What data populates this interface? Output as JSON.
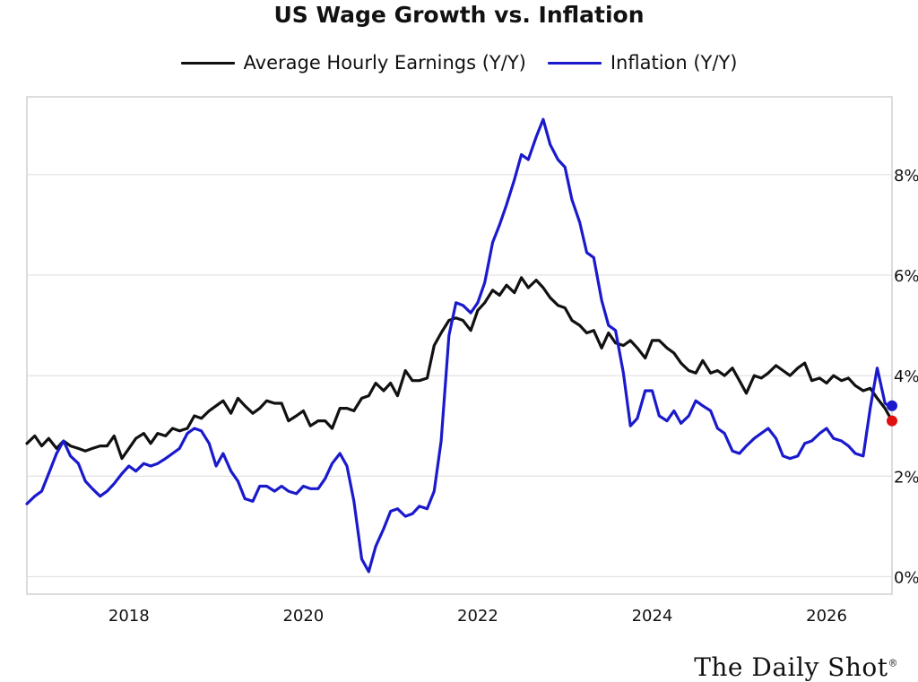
{
  "colors": {
    "earnings": "#111111",
    "inflation": "#1a1acc",
    "latest_earnings": "#e01010",
    "latest_inflation": "#1a1acc",
    "grid": "#dcdcdc"
  },
  "chart_data": {
    "type": "line",
    "title": "US Wage Growth vs. Inflation",
    "xlabel": "",
    "ylabel": "",
    "y_axis_side": "right",
    "x_ticks": [
      2018,
      2020,
      2022,
      2024,
      2026
    ],
    "x_tick_labels": [
      "2018",
      "2020",
      "2022",
      "2024",
      "2026"
    ],
    "y_ticks": [
      0,
      2,
      4,
      6,
      8
    ],
    "y_tick_labels": [
      "0%",
      "2%",
      "4%",
      "6%",
      "8%"
    ],
    "xlim": [
      2016.83,
      2026.75
    ],
    "ylim": [
      -0.35,
      9.55
    ],
    "grid": "horizontal",
    "legend_position": "top",
    "series": [
      {
        "name": "Average Hourly Earnings (Y/Y)",
        "key": "earnings",
        "points": [
          [
            2016.83,
            2.65
          ],
          [
            2016.92,
            2.8
          ],
          [
            2017.0,
            2.6
          ],
          [
            2017.08,
            2.75
          ],
          [
            2017.17,
            2.55
          ],
          [
            2017.25,
            2.7
          ],
          [
            2017.33,
            2.6
          ],
          [
            2017.42,
            2.55
          ],
          [
            2017.5,
            2.5
          ],
          [
            2017.58,
            2.55
          ],
          [
            2017.67,
            2.6
          ],
          [
            2017.75,
            2.6
          ],
          [
            2017.83,
            2.8
          ],
          [
            2017.92,
            2.35
          ],
          [
            2018.0,
            2.55
          ],
          [
            2018.08,
            2.75
          ],
          [
            2018.17,
            2.85
          ],
          [
            2018.25,
            2.65
          ],
          [
            2018.33,
            2.85
          ],
          [
            2018.42,
            2.8
          ],
          [
            2018.5,
            2.95
          ],
          [
            2018.58,
            2.9
          ],
          [
            2018.67,
            2.95
          ],
          [
            2018.75,
            3.2
          ],
          [
            2018.83,
            3.15
          ],
          [
            2018.92,
            3.3
          ],
          [
            2019.0,
            3.4
          ],
          [
            2019.08,
            3.5
          ],
          [
            2019.17,
            3.25
          ],
          [
            2019.25,
            3.55
          ],
          [
            2019.33,
            3.4
          ],
          [
            2019.42,
            3.25
          ],
          [
            2019.5,
            3.35
          ],
          [
            2019.58,
            3.5
          ],
          [
            2019.67,
            3.45
          ],
          [
            2019.75,
            3.45
          ],
          [
            2019.83,
            3.1
          ],
          [
            2019.92,
            3.2
          ],
          [
            2020.0,
            3.3
          ],
          [
            2020.08,
            3.0
          ],
          [
            2020.17,
            3.1
          ],
          [
            2020.25,
            3.1
          ],
          [
            2020.33,
            2.95
          ],
          [
            2020.42,
            3.35
          ],
          [
            2020.5,
            3.35
          ],
          [
            2020.58,
            3.3
          ],
          [
            2020.67,
            3.55
          ],
          [
            2020.75,
            3.6
          ],
          [
            2020.83,
            3.85
          ],
          [
            2020.92,
            3.7
          ],
          [
            2021.0,
            3.85
          ],
          [
            2021.08,
            3.6
          ],
          [
            2021.17,
            4.1
          ],
          [
            2021.25,
            3.9
          ],
          [
            2021.33,
            3.9
          ],
          [
            2021.42,
            3.95
          ],
          [
            2021.5,
            4.6
          ],
          [
            2021.58,
            4.85
          ],
          [
            2021.67,
            5.1
          ],
          [
            2021.75,
            5.15
          ],
          [
            2021.83,
            5.1
          ],
          [
            2021.92,
            4.9
          ],
          [
            2022.0,
            5.3
          ],
          [
            2022.08,
            5.45
          ],
          [
            2022.17,
            5.7
          ],
          [
            2022.25,
            5.6
          ],
          [
            2022.33,
            5.8
          ],
          [
            2022.42,
            5.65
          ],
          [
            2022.5,
            5.95
          ],
          [
            2022.58,
            5.75
          ],
          [
            2022.67,
            5.9
          ],
          [
            2022.75,
            5.75
          ],
          [
            2022.83,
            5.55
          ],
          [
            2022.92,
            5.4
          ],
          [
            2023.0,
            5.35
          ],
          [
            2023.08,
            5.1
          ],
          [
            2023.17,
            5.0
          ],
          [
            2023.25,
            4.85
          ],
          [
            2023.33,
            4.9
          ],
          [
            2023.42,
            4.55
          ],
          [
            2023.5,
            4.85
          ],
          [
            2023.58,
            4.65
          ],
          [
            2023.67,
            4.6
          ],
          [
            2023.75,
            4.7
          ],
          [
            2023.83,
            4.55
          ],
          [
            2023.92,
            4.35
          ],
          [
            2024.0,
            4.7
          ],
          [
            2024.08,
            4.7
          ],
          [
            2024.17,
            4.55
          ],
          [
            2024.25,
            4.45
          ],
          [
            2024.33,
            4.25
          ],
          [
            2024.42,
            4.1
          ],
          [
            2024.5,
            4.05
          ],
          [
            2024.58,
            4.3
          ],
          [
            2024.67,
            4.05
          ],
          [
            2024.75,
            4.1
          ],
          [
            2024.83,
            4.0
          ],
          [
            2024.92,
            4.15
          ],
          [
            2025.0,
            3.9
          ],
          [
            2025.08,
            3.65
          ],
          [
            2025.17,
            4.0
          ],
          [
            2025.25,
            3.95
          ],
          [
            2025.33,
            4.05
          ],
          [
            2025.42,
            4.2
          ],
          [
            2025.5,
            4.1
          ],
          [
            2025.58,
            4.0
          ],
          [
            2025.67,
            4.15
          ],
          [
            2025.75,
            4.25
          ],
          [
            2025.83,
            3.9
          ],
          [
            2025.92,
            3.95
          ],
          [
            2026.0,
            3.85
          ],
          [
            2026.08,
            4.0
          ],
          [
            2026.17,
            3.9
          ],
          [
            2026.25,
            3.95
          ],
          [
            2026.33,
            3.8
          ],
          [
            2026.42,
            3.7
          ],
          [
            2026.5,
            3.75
          ],
          [
            2026.58,
            3.55
          ],
          [
            2026.67,
            3.35
          ],
          [
            2026.75,
            3.1
          ]
        ]
      },
      {
        "name": "Inflation (Y/Y)",
        "key": "inflation",
        "points": [
          [
            2016.83,
            1.45
          ],
          [
            2016.92,
            1.6
          ],
          [
            2017.0,
            1.7
          ],
          [
            2017.08,
            2.05
          ],
          [
            2017.17,
            2.45
          ],
          [
            2017.25,
            2.7
          ],
          [
            2017.33,
            2.4
          ],
          [
            2017.42,
            2.25
          ],
          [
            2017.5,
            1.9
          ],
          [
            2017.58,
            1.75
          ],
          [
            2017.67,
            1.6
          ],
          [
            2017.75,
            1.7
          ],
          [
            2017.83,
            1.85
          ],
          [
            2017.92,
            2.05
          ],
          [
            2018.0,
            2.2
          ],
          [
            2018.08,
            2.1
          ],
          [
            2018.17,
            2.25
          ],
          [
            2018.25,
            2.2
          ],
          [
            2018.33,
            2.25
          ],
          [
            2018.42,
            2.35
          ],
          [
            2018.5,
            2.45
          ],
          [
            2018.58,
            2.55
          ],
          [
            2018.67,
            2.85
          ],
          [
            2018.75,
            2.95
          ],
          [
            2018.83,
            2.9
          ],
          [
            2018.92,
            2.65
          ],
          [
            2019.0,
            2.2
          ],
          [
            2019.08,
            2.45
          ],
          [
            2019.17,
            2.1
          ],
          [
            2019.25,
            1.9
          ],
          [
            2019.33,
            1.55
          ],
          [
            2019.42,
            1.5
          ],
          [
            2019.5,
            1.8
          ],
          [
            2019.58,
            1.8
          ],
          [
            2019.67,
            1.7
          ],
          [
            2019.75,
            1.8
          ],
          [
            2019.83,
            1.7
          ],
          [
            2019.92,
            1.65
          ],
          [
            2020.0,
            1.8
          ],
          [
            2020.08,
            1.75
          ],
          [
            2020.17,
            1.75
          ],
          [
            2020.25,
            1.95
          ],
          [
            2020.33,
            2.25
          ],
          [
            2020.42,
            2.45
          ],
          [
            2020.5,
            2.2
          ],
          [
            2020.58,
            1.5
          ],
          [
            2020.67,
            0.35
          ],
          [
            2020.75,
            0.1
          ],
          [
            2020.83,
            0.6
          ],
          [
            2020.92,
            0.95
          ],
          [
            2021.0,
            1.3
          ],
          [
            2021.08,
            1.35
          ],
          [
            2021.17,
            1.2
          ],
          [
            2021.25,
            1.25
          ],
          [
            2021.33,
            1.4
          ],
          [
            2021.42,
            1.35
          ],
          [
            2021.5,
            1.7
          ],
          [
            2021.58,
            2.7
          ],
          [
            2021.67,
            4.8
          ],
          [
            2021.75,
            5.45
          ],
          [
            2021.83,
            5.4
          ],
          [
            2021.92,
            5.25
          ],
          [
            2022.0,
            5.45
          ],
          [
            2022.08,
            5.85
          ],
          [
            2022.17,
            6.65
          ],
          [
            2022.25,
            7.0
          ],
          [
            2022.33,
            7.4
          ],
          [
            2022.42,
            7.9
          ],
          [
            2022.5,
            8.4
          ],
          [
            2022.58,
            8.3
          ],
          [
            2022.67,
            8.75
          ],
          [
            2022.75,
            9.1
          ],
          [
            2022.83,
            8.6
          ],
          [
            2022.92,
            8.3
          ],
          [
            2023.0,
            8.15
          ],
          [
            2023.08,
            7.5
          ],
          [
            2023.17,
            7.05
          ],
          [
            2023.25,
            6.45
          ],
          [
            2023.33,
            6.35
          ],
          [
            2023.42,
            5.5
          ],
          [
            2023.5,
            5.0
          ],
          [
            2023.58,
            4.9
          ],
          [
            2023.67,
            4.05
          ],
          [
            2023.75,
            3.0
          ],
          [
            2023.83,
            3.15
          ],
          [
            2023.92,
            3.7
          ],
          [
            2024.0,
            3.7
          ],
          [
            2024.08,
            3.2
          ],
          [
            2024.17,
            3.1
          ],
          [
            2024.25,
            3.3
          ],
          [
            2024.33,
            3.05
          ],
          [
            2024.42,
            3.2
          ],
          [
            2024.5,
            3.5
          ],
          [
            2024.58,
            3.4
          ],
          [
            2024.67,
            3.3
          ],
          [
            2024.75,
            2.95
          ],
          [
            2024.83,
            2.85
          ],
          [
            2024.92,
            2.5
          ],
          [
            2025.0,
            2.45
          ],
          [
            2025.08,
            2.6
          ],
          [
            2025.17,
            2.75
          ],
          [
            2025.25,
            2.85
          ],
          [
            2025.33,
            2.95
          ],
          [
            2025.42,
            2.75
          ],
          [
            2025.5,
            2.4
          ],
          [
            2025.58,
            2.35
          ],
          [
            2025.67,
            2.4
          ],
          [
            2025.75,
            2.65
          ],
          [
            2025.83,
            2.7
          ],
          [
            2025.92,
            2.85
          ],
          [
            2026.0,
            2.95
          ],
          [
            2026.08,
            2.75
          ],
          [
            2026.17,
            2.7
          ],
          [
            2026.25,
            2.6
          ],
          [
            2026.33,
            2.45
          ],
          [
            2026.42,
            2.4
          ],
          [
            2026.5,
            3.35
          ],
          [
            2026.58,
            4.15
          ],
          [
            2026.67,
            3.45
          ],
          [
            2026.75,
            3.35
          ]
        ]
      }
    ],
    "latest_markers": [
      {
        "series": "earnings",
        "x": 2026.75,
        "y": 3.1
      },
      {
        "series": "inflation",
        "x": 2026.75,
        "y": 3.4
      }
    ]
  },
  "legend": {
    "items": [
      {
        "label": "Average Hourly Earnings (Y/Y)"
      },
      {
        "label": "Inflation (Y/Y)"
      }
    ]
  },
  "brand": {
    "text": "The Daily Shot",
    "mark": "®"
  }
}
